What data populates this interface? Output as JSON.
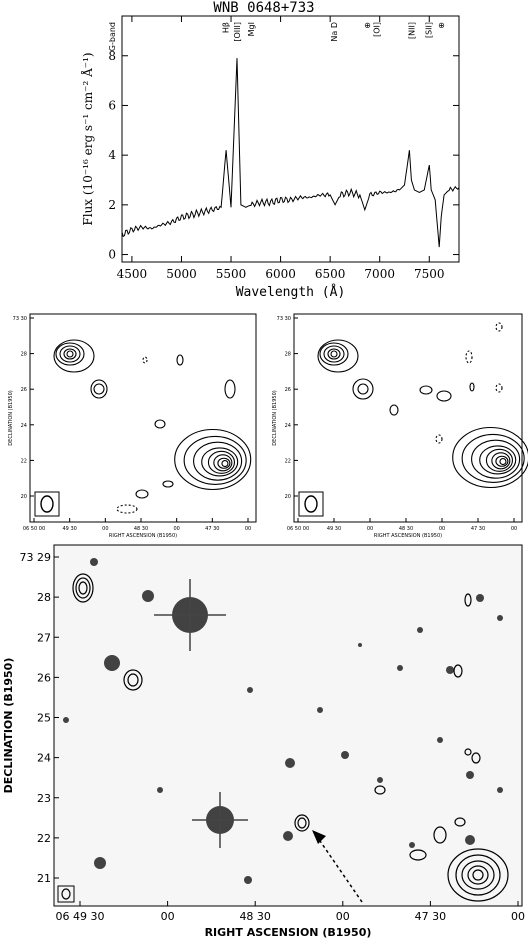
{
  "figure": {
    "spectrum": {
      "title": "WNB 0648+733",
      "xlabel": "Wavelength (Å)",
      "ylabel": "Flux (10⁻¹⁶ erg s⁻¹ cm⁻² Å⁻¹)",
      "x_ticks": [
        "4500",
        "5000",
        "5500",
        "6000",
        "6500",
        "7000",
        "7500"
      ],
      "y_ticks": [
        "0",
        "2",
        "4",
        "6",
        "8"
      ],
      "line_labels": [
        {
          "text": "G-band",
          "wl": 4300
        },
        {
          "text": "Hβ",
          "wl": 5445
        },
        {
          "text": "[OIII]",
          "wl": 5560
        },
        {
          "text": "MgI",
          "wl": 5700
        },
        {
          "text": "Na D",
          "wl": 6540
        },
        {
          "text": "⊕",
          "wl": 6870
        },
        {
          "text": "[OI]",
          "wl": 6970
        },
        {
          "text": "[NII]",
          "wl": 7320
        },
        {
          "text": "[SII]",
          "wl": 7490
        },
        {
          "text": "⊕",
          "wl": 7620
        }
      ]
    },
    "radio_left": {
      "ylabel": "DECLINATION (B1950)",
      "xlabel": "RIGHT ASCENSION (B1950)",
      "y_ticks": [
        "73 30",
        "28",
        "26",
        "24",
        "22",
        "20"
      ],
      "x_ticks": [
        "06 50 00",
        "49 30",
        "00",
        "48 30",
        "00",
        "47 30",
        "00"
      ]
    },
    "radio_right": {
      "ylabel": "DECLINATION (B1950)",
      "xlabel": "RIGHT ASCENSION (B1950)",
      "y_ticks": [
        "73 30",
        "28",
        "26",
        "24",
        "22",
        "20"
      ],
      "x_ticks": [
        "06 50 00",
        "49 30",
        "00",
        "48 30",
        "00",
        "47 30",
        "00"
      ]
    },
    "optical": {
      "ylabel": "DECLINATION (B1950)",
      "xlabel": "RIGHT ASCENSION (B1950)",
      "y_ticks": [
        "73 29",
        "28",
        "27",
        "26",
        "25",
        "24",
        "23",
        "22",
        "21"
      ],
      "x_ticks": [
        "06 49 30",
        "00",
        "48 30",
        "00",
        "47 30",
        "00"
      ]
    }
  },
  "chart_data": [
    {
      "type": "line",
      "title": "WNB 0648+733",
      "xlabel": "Wavelength (Å)",
      "ylabel": "Flux (10⁻¹⁶ erg s⁻¹ cm⁻² Å⁻¹)",
      "xlim": [
        4400,
        7800
      ],
      "ylim": [
        -0.3,
        9.6
      ],
      "grid": false,
      "x": [
        4400,
        4500,
        4600,
        4700,
        4800,
        4900,
        5000,
        5100,
        5200,
        5300,
        5400,
        5450,
        5500,
        5560,
        5600,
        5650,
        5700,
        5800,
        5900,
        6000,
        6100,
        6200,
        6300,
        6400,
        6500,
        6550,
        6600,
        6700,
        6800,
        6850,
        6900,
        7000,
        7100,
        7200,
        7250,
        7300,
        7320,
        7350,
        7400,
        7450,
        7500,
        7520,
        7560,
        7600,
        7620,
        7650,
        7700,
        7800
      ],
      "y": [
        0.8,
        1.0,
        1.1,
        1.05,
        1.2,
        1.3,
        1.5,
        1.6,
        1.7,
        1.8,
        1.9,
        4.2,
        1.9,
        7.9,
        2.0,
        1.9,
        2.0,
        2.1,
        2.1,
        2.2,
        2.2,
        2.3,
        2.3,
        2.4,
        2.4,
        2.0,
        2.4,
        2.5,
        2.4,
        1.8,
        2.4,
        2.5,
        2.5,
        2.6,
        2.8,
        4.2,
        3.0,
        2.6,
        2.5,
        2.6,
        3.6,
        2.6,
        2.2,
        0.3,
        1.5,
        2.4,
        2.6,
        2.7
      ]
    }
  ]
}
